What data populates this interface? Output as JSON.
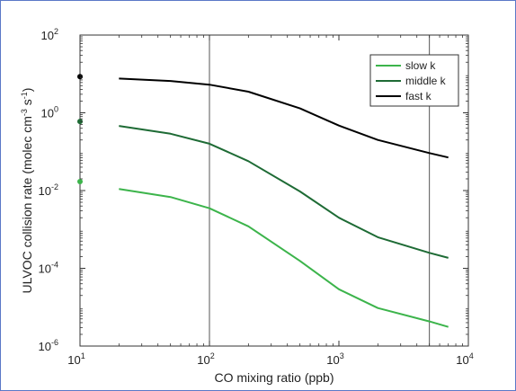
{
  "chart_data": {
    "type": "line",
    "xlabel": "CO mixing ratio (ppb)",
    "ylabel_main": "ULVOC collision rate (molec cm",
    "ylabel_exp1": "-3",
    "ylabel_mid": " s",
    "ylabel_exp2": "-1",
    "ylabel_end": ")",
    "x_scale": "log",
    "y_scale": "log",
    "xlim": [
      10,
      10000
    ],
    "ylim": [
      1e-06,
      100
    ],
    "x_ticks": [
      {
        "value": 10,
        "base": "10",
        "exp": "1"
      },
      {
        "value": 100,
        "base": "10",
        "exp": "2"
      },
      {
        "value": 1000,
        "base": "10",
        "exp": "3"
      },
      {
        "value": 10000,
        "base": "10",
        "exp": "4"
      }
    ],
    "y_ticks": [
      {
        "value": 1e-06,
        "base": "10",
        "exp": "-6"
      },
      {
        "value": 0.0001,
        "base": "10",
        "exp": "-4"
      },
      {
        "value": 0.01,
        "base": "10",
        "exp": "-2"
      },
      {
        "value": 1,
        "base": "10",
        "exp": "0"
      },
      {
        "value": 100,
        "base": "10",
        "exp": "2"
      }
    ],
    "vlines": [
      100,
      5000
    ],
    "legend_position": "top-right",
    "series": [
      {
        "name": "slow k",
        "color": "#3cb44b",
        "x": [
          20,
          50,
          100,
          200,
          500,
          1000,
          2000,
          5000,
          7000
        ],
        "y": [
          0.011,
          0.0068,
          0.0035,
          0.0012,
          0.000155,
          2.9e-05,
          9.5e-06,
          4.3e-06,
          3.1e-06
        ]
      },
      {
        "name": "middle k",
        "color": "#1e6b35",
        "x": [
          20,
          50,
          100,
          200,
          500,
          1000,
          2000,
          5000,
          7000
        ],
        "y": [
          0.46,
          0.29,
          0.16,
          0.057,
          0.0095,
          0.002,
          0.00063,
          0.00025,
          0.000185
        ]
      },
      {
        "name": "fast k",
        "color": "#000000",
        "x": [
          20,
          50,
          100,
          200,
          500,
          1000,
          2000,
          5000,
          7000
        ],
        "y": [
          7.6,
          6.6,
          5.3,
          3.5,
          1.3,
          0.47,
          0.2,
          0.092,
          0.071
        ]
      }
    ],
    "markers": [
      {
        "x": 10,
        "y": 8.5,
        "color": "#000000"
      },
      {
        "x": 10,
        "y": 0.6,
        "color": "#1e6b35"
      },
      {
        "x": 10,
        "y": 0.017,
        "color": "#3cb44b"
      }
    ]
  }
}
